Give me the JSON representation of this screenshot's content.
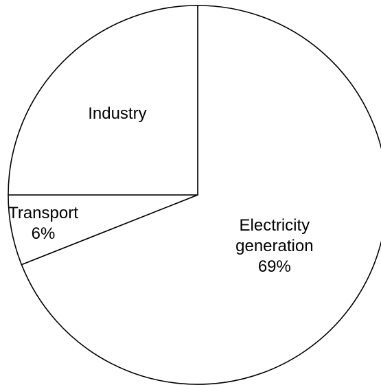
{
  "chart_data": {
    "type": "pie",
    "slices": [
      {
        "label": [
          "Electricity",
          "generation"
        ],
        "display_value": "69%",
        "value": 69
      },
      {
        "label": [
          "Transport"
        ],
        "display_value": "6%",
        "value": 6
      },
      {
        "label": [
          "Industry"
        ],
        "display_value": "",
        "value": 25
      }
    ],
    "start_angle_deg": -90,
    "direction": "clockwise",
    "colors": {
      "fill": "#ffffff",
      "stroke": "#000000"
    }
  }
}
